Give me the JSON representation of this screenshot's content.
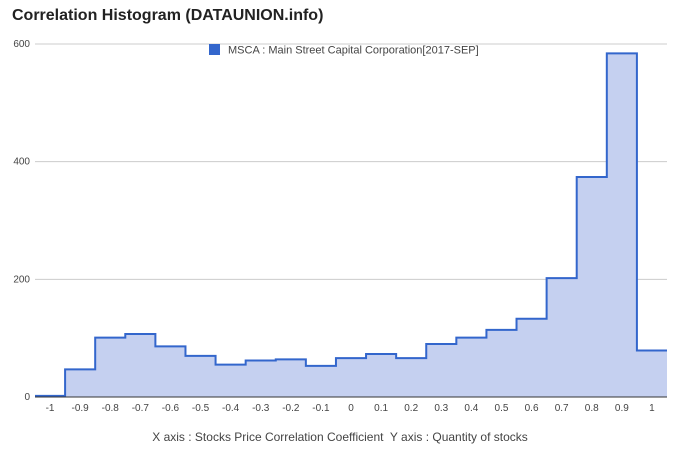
{
  "chart_data": {
    "type": "area",
    "title": "Correlation Histogram (DATAUNION.info)",
    "x_caption": "X axis : Stocks Price Correlation Coefficient  Y axis : Quantity of stocks",
    "legend": {
      "label": "MSCA : Main Street Capital Corporation[2017-SEP]",
      "position": "top",
      "color": "#3366cc"
    },
    "xlim": [
      -1.05,
      1.05
    ],
    "ylim": [
      0,
      600
    ],
    "x_ticks": [
      "-1",
      "-0.9",
      "-0.8",
      "-0.7",
      "-0.6",
      "-0.5",
      "-0.4",
      "-0.3",
      "-0.2",
      "-0.1",
      "0",
      "0.1",
      "0.2",
      "0.3",
      "0.4",
      "0.5",
      "0.6",
      "0.7",
      "0.8",
      "0.9",
      "1"
    ],
    "y_ticks": [
      "0",
      "200",
      "400",
      "600"
    ],
    "grid": true,
    "line_color": "#3366cc",
    "fill_color": "#c5d0f0",
    "x": [
      -1.0,
      -0.9,
      -0.8,
      -0.7,
      -0.6,
      -0.5,
      -0.4,
      -0.3,
      -0.2,
      -0.1,
      0.0,
      0.1,
      0.2,
      0.3,
      0.4,
      0.5,
      0.6,
      0.7,
      0.8,
      0.9,
      1.0
    ],
    "values": [
      2,
      47,
      101,
      107,
      86,
      70,
      55,
      62,
      64,
      53,
      66,
      73,
      66,
      90,
      101,
      114,
      133,
      202,
      374,
      584,
      79
    ]
  }
}
